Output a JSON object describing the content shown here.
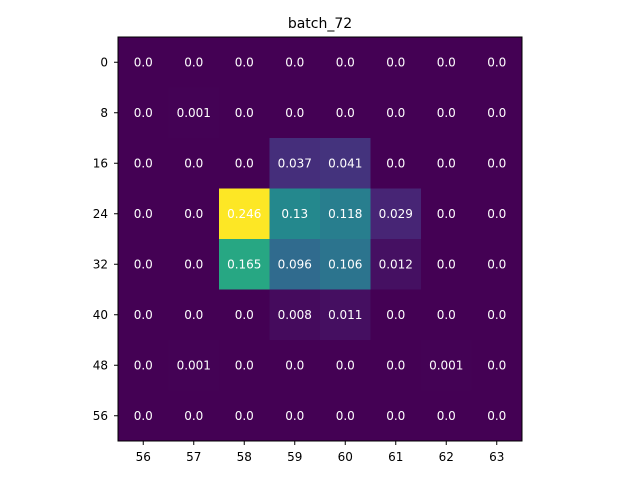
{
  "chart_data": {
    "type": "heatmap",
    "title": "batch_72",
    "xlabel": "",
    "ylabel": "",
    "x_ticks": [
      "56",
      "57",
      "58",
      "59",
      "60",
      "61",
      "62",
      "63"
    ],
    "y_ticks": [
      "0",
      "8",
      "16",
      "24",
      "32",
      "40",
      "48",
      "56"
    ],
    "colormap": "viridis",
    "vmin": 0.0,
    "vmax": 0.246,
    "values": [
      [
        0.0,
        0.0,
        0.0,
        0.0,
        0.0,
        0.0,
        0.0,
        0.0
      ],
      [
        0.0,
        0.001,
        0.0,
        0.0,
        0.0,
        0.0,
        0.0,
        0.0
      ],
      [
        0.0,
        0.0,
        0.0,
        0.037,
        0.041,
        0.0,
        0.0,
        0.0
      ],
      [
        0.0,
        0.0,
        0.246,
        0.13,
        0.118,
        0.029,
        0.0,
        0.0
      ],
      [
        0.0,
        0.0,
        0.165,
        0.096,
        0.106,
        0.012,
        0.0,
        0.0
      ],
      [
        0.0,
        0.0,
        0.0,
        0.008,
        0.011,
        0.0,
        0.0,
        0.0
      ],
      [
        0.0,
        0.001,
        0.0,
        0.0,
        0.0,
        0.0,
        0.001,
        0.0
      ],
      [
        0.0,
        0.0,
        0.0,
        0.0,
        0.0,
        0.0,
        0.0,
        0.0
      ]
    ],
    "cell_labels": [
      [
        "0.0",
        "0.0",
        "0.0",
        "0.0",
        "0.0",
        "0.0",
        "0.0",
        "0.0"
      ],
      [
        "0.0",
        "0.001",
        "0.0",
        "0.0",
        "0.0",
        "0.0",
        "0.0",
        "0.0"
      ],
      [
        "0.0",
        "0.0",
        "0.0",
        "0.037",
        "0.041",
        "0.0",
        "0.0",
        "0.0"
      ],
      [
        "0.0",
        "0.0",
        "0.246",
        "0.13",
        "0.118",
        "0.029",
        "0.0",
        "0.0"
      ],
      [
        "0.0",
        "0.0",
        "0.165",
        "0.096",
        "0.106",
        "0.012",
        "0.0",
        "0.0"
      ],
      [
        "0.0",
        "0.0",
        "0.0",
        "0.008",
        "0.011",
        "0.0",
        "0.0",
        "0.0"
      ],
      [
        "0.0",
        "0.001",
        "0.0",
        "0.0",
        "0.0",
        "0.0",
        "0.001",
        "0.0"
      ],
      [
        "0.0",
        "0.0",
        "0.0",
        "0.0",
        "0.0",
        "0.0",
        "0.0",
        "0.0"
      ]
    ],
    "grid": false,
    "legend": "none",
    "colorbar": false
  }
}
